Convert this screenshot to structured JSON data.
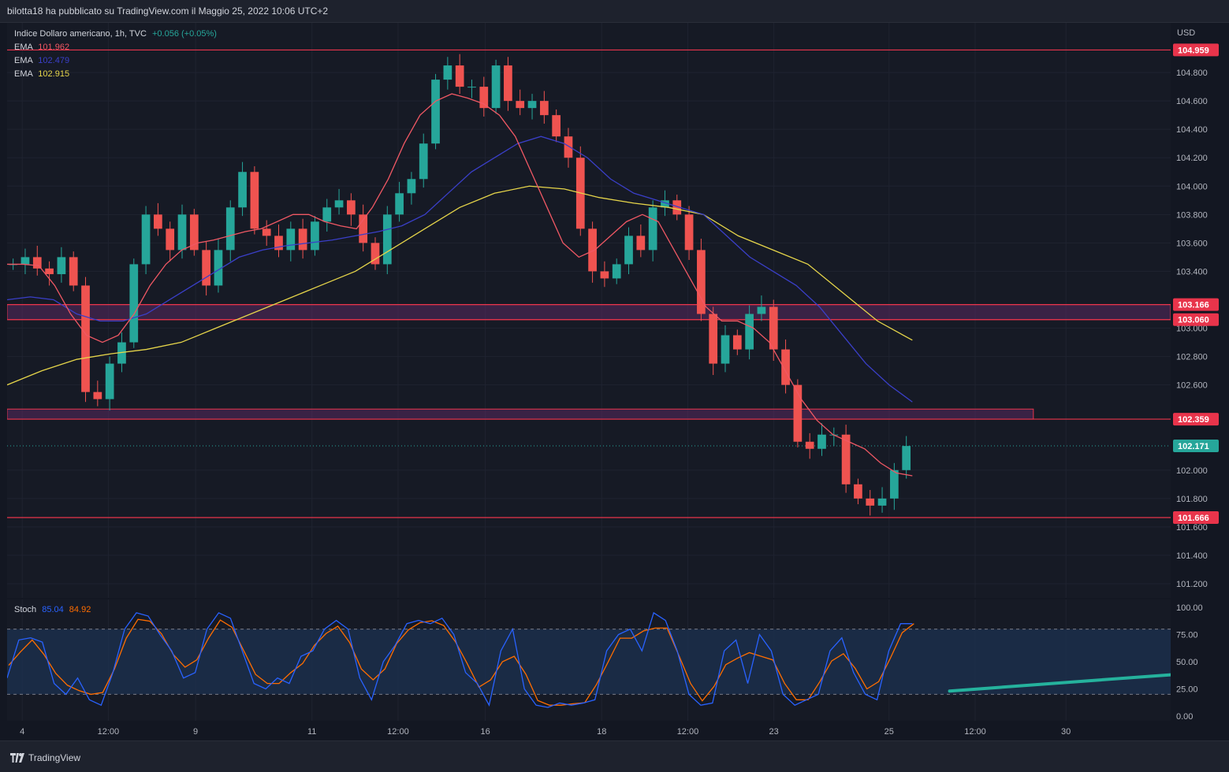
{
  "header": {
    "publisher_text": "bilotta18 ha pubblicato su TradingView.com il Maggio 25, 2022 10:06 UTC+2"
  },
  "legend": {
    "symbol": "Indice Dollaro americano, 1h, TVC",
    "change": "+0.056 (+0.05%)",
    "ema_label": "EMA",
    "ema1_value": "101.962",
    "ema2_value": "102.479",
    "ema3_value": "102.915"
  },
  "stoch_legend": {
    "label": "Stoch",
    "k_value": "85.04",
    "d_value": "84.92"
  },
  "colors": {
    "up": "#26a69a",
    "down": "#ef5350",
    "ema_fast": "#f05864",
    "ema_mid": "#3a3fc8",
    "ema_slow": "#e6d54a",
    "stoch_k": "#2962ff",
    "stoch_d": "#ff6d00",
    "level_line": "#e8344b",
    "zone_fill": "#5a2a60",
    "trendline": "#25b29d"
  },
  "chart_data": {
    "type": "candlestick",
    "currency": "USD",
    "price_axis_ticks": [
      "104.800",
      "104.600",
      "104.400",
      "104.200",
      "104.000",
      "103.800",
      "103.600",
      "103.400",
      "103.000",
      "102.800",
      "102.600",
      "102.000",
      "101.800",
      "101.600",
      "101.400",
      "101.200"
    ],
    "price_axis_tick_values": [
      104.8,
      104.6,
      104.4,
      104.2,
      104.0,
      103.8,
      103.6,
      103.4,
      103.0,
      102.8,
      102.6,
      102.0,
      101.8,
      101.6,
      101.4,
      101.2
    ],
    "price_range": [
      101.1,
      105.15
    ],
    "levels": [
      {
        "label": "104.959",
        "value": 104.959
      },
      {
        "label": "103.166",
        "value": 103.166
      },
      {
        "label": "103.060",
        "value": 103.06
      },
      {
        "label": "102.359",
        "value": 102.359
      },
      {
        "label": "101.666",
        "value": 101.666
      }
    ],
    "zones": [
      {
        "from": 103.06,
        "to": 103.166,
        "x_from": 0,
        "x_to": 1.0
      },
      {
        "from": 102.359,
        "to": 102.43,
        "x_from": 0,
        "x_to": 0.882
      }
    ],
    "last_price": {
      "label": "102.171",
      "value": 102.171
    },
    "time_ticks": [
      "4",
      "12:00",
      "9",
      "11",
      "12:00",
      "16",
      "18",
      "12:00",
      "23",
      "25",
      "12:00",
      "30"
    ],
    "time_tick_positions": [
      0.013,
      0.087,
      0.162,
      0.262,
      0.336,
      0.411,
      0.511,
      0.585,
      0.659,
      0.758,
      0.832,
      0.91
    ],
    "x_end_fraction": 0.778,
    "close_series": [
      103.45,
      103.5,
      103.42,
      103.38,
      103.5,
      103.3,
      102.55,
      102.5,
      102.75,
      102.9,
      103.45,
      103.8,
      103.7,
      103.55,
      103.8,
      103.55,
      103.3,
      103.55,
      103.85,
      104.1,
      103.7,
      103.65,
      103.55,
      103.7,
      103.55,
      103.75,
      103.85,
      103.9,
      103.8,
      103.6,
      103.45,
      103.8,
      103.95,
      104.05,
      104.3,
      104.75,
      104.85,
      104.7,
      104.7,
      104.55,
      104.85,
      104.6,
      104.55,
      104.6,
      104.5,
      104.35,
      104.2,
      103.7,
      103.4,
      103.35,
      103.45,
      103.65,
      103.55,
      103.85,
      103.9,
      103.8,
      103.55,
      103.1,
      102.75,
      102.95,
      102.85,
      103.1,
      103.15,
      102.85,
      102.6,
      102.2,
      102.15,
      102.25,
      102.25,
      101.9,
      101.8,
      101.75,
      101.8,
      102.0,
      102.17
    ],
    "ema_fast": [
      103.45,
      103.45,
      103.44,
      103.3,
      103.1,
      102.95,
      102.9,
      102.95,
      103.1,
      103.3,
      103.45,
      103.55,
      103.6,
      103.62,
      103.65,
      103.68,
      103.7,
      103.75,
      103.8,
      103.8,
      103.75,
      103.72,
      103.7,
      103.85,
      104.05,
      104.3,
      104.5,
      104.6,
      104.65,
      104.62,
      104.58,
      104.5,
      104.35,
      104.1,
      103.85,
      103.6,
      103.5,
      103.55,
      103.65,
      103.75,
      103.8,
      103.75,
      103.55,
      103.35,
      103.15,
      103.05,
      103.05,
      103.0,
      102.9,
      102.7,
      102.5,
      102.35,
      102.25,
      102.2,
      102.15,
      102.05,
      101.98,
      101.96
    ],
    "ema_mid": [
      103.2,
      103.22,
      103.2,
      103.1,
      103.05,
      103.05,
      103.1,
      103.2,
      103.3,
      103.4,
      103.5,
      103.55,
      103.58,
      103.6,
      103.62,
      103.65,
      103.68,
      103.72,
      103.8,
      103.95,
      104.1,
      104.2,
      104.3,
      104.35,
      104.3,
      104.2,
      104.05,
      103.95,
      103.9,
      103.85,
      103.8,
      103.65,
      103.5,
      103.4,
      103.3,
      103.15,
      102.95,
      102.75,
      102.6,
      102.48
    ],
    "ema_slow": [
      102.6,
      102.7,
      102.78,
      102.82,
      102.85,
      102.9,
      103.0,
      103.1,
      103.2,
      103.3,
      103.4,
      103.55,
      103.7,
      103.85,
      103.95,
      104.0,
      103.98,
      103.92,
      103.88,
      103.85,
      103.8,
      103.65,
      103.55,
      103.45,
      103.25,
      103.05,
      102.915
    ],
    "stoch_ticks": [
      "100.00",
      "75.00",
      "50.00",
      "25.00",
      "0.00"
    ],
    "stoch_tick_values": [
      100,
      75,
      50,
      25,
      0
    ],
    "stoch_band": [
      20,
      80
    ],
    "stoch_k": [
      35,
      70,
      72,
      68,
      30,
      20,
      35,
      15,
      10,
      40,
      80,
      95,
      92,
      75,
      60,
      35,
      40,
      80,
      95,
      90,
      60,
      30,
      25,
      35,
      30,
      55,
      60,
      80,
      88,
      80,
      35,
      15,
      50,
      65,
      85,
      88,
      85,
      90,
      75,
      40,
      30,
      10,
      60,
      80,
      25,
      10,
      8,
      12,
      10,
      12,
      15,
      60,
      75,
      80,
      60,
      95,
      88,
      60,
      20,
      10,
      12,
      60,
      70,
      30,
      75,
      60,
      20,
      10,
      15,
      20,
      60,
      72,
      40,
      20,
      15,
      60,
      85,
      85
    ],
    "stoch_trendline": {
      "from": [
        0.81,
        23
      ],
      "to": [
        1.0,
        38
      ]
    }
  }
}
